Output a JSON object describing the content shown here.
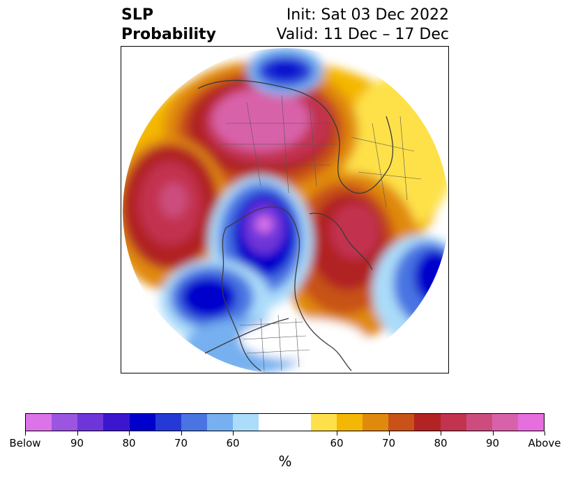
{
  "title": {
    "left_line1": "SLP",
    "left_line2": "Probability",
    "right_line1": "Init: Sat 03 Dec 2022",
    "right_line2": "Valid: 11 Dec – 17 Dec"
  },
  "map": {
    "projection": "north-polar-stereographic",
    "features": [
      "coastlines",
      "country-borders",
      "us-state-borders"
    ],
    "anomaly_regions": [
      {
        "name": "Eurasia/Siberia",
        "sign": "above",
        "peak_percent": 90
      },
      {
        "name": "North Pacific",
        "sign": "above",
        "peak_percent": 90
      },
      {
        "name": "North Atlantic",
        "sign": "above",
        "peak_percent": 85
      },
      {
        "name": "Europe",
        "sign": "above",
        "peak_percent": 60
      },
      {
        "name": "Gulf of Alaska",
        "sign": "below",
        "peak_percent": 85
      },
      {
        "name": "Canadian Arctic",
        "sign": "below",
        "peak_percent": 95
      },
      {
        "name": "Northern Siberia coast",
        "sign": "below",
        "peak_percent": 80
      },
      {
        "name": "Central Atlantic",
        "sign": "below",
        "peak_percent": 85
      }
    ]
  },
  "colorbar": {
    "unit_label": "%",
    "colors": [
      "#dc73e8",
      "#9b55e0",
      "#6e36d9",
      "#3c16cf",
      "#0000cc",
      "#2439d6",
      "#4a74e2",
      "#76b0f0",
      "#abdcf9",
      "#ffffff",
      "#ffffff",
      "#fee14a",
      "#f4b705",
      "#e08a0d",
      "#c85218",
      "#b12423",
      "#c23350",
      "#cc4d7d",
      "#d862a9",
      "#e76ede"
    ],
    "tick_labels": [
      "Below",
      "90",
      "80",
      "70",
      "60",
      "60",
      "70",
      "80",
      "90",
      "Above"
    ]
  }
}
